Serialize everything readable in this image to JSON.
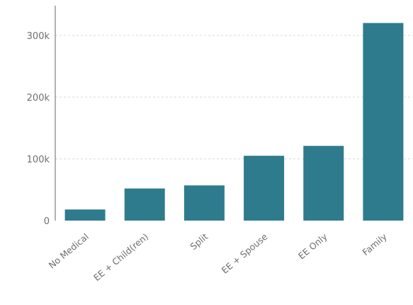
{
  "chart_data": {
    "type": "bar",
    "categories": [
      "No Medical",
      "EE + Child(ren)",
      "Split",
      "EE + Spouse",
      "EE Only",
      "Family"
    ],
    "values": [
      18000,
      52000,
      57000,
      105000,
      121000,
      320000
    ],
    "y_ticks": [
      {
        "value": 0,
        "label": "0"
      },
      {
        "value": 100000,
        "label": "100k"
      },
      {
        "value": 200000,
        "label": "200k"
      },
      {
        "value": 300000,
        "label": "300k"
      }
    ],
    "ylim": [
      0,
      340000
    ],
    "title": "",
    "xlabel": "",
    "ylabel": "",
    "grid": true,
    "bar_color": "#2f7b8e"
  }
}
